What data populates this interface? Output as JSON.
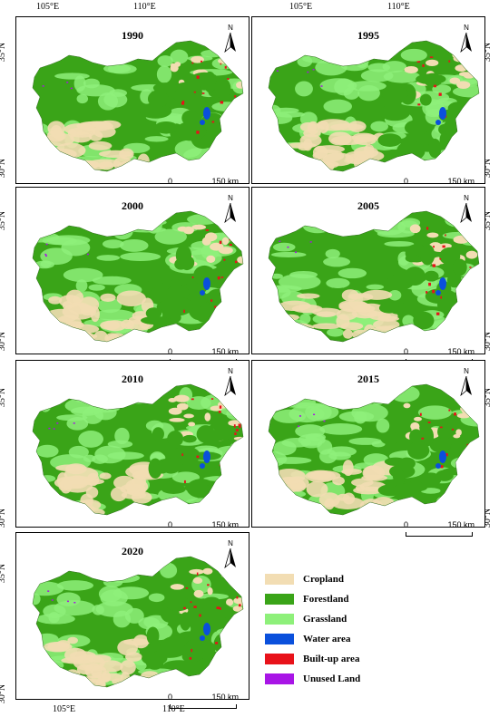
{
  "axes": {
    "lon_labels": [
      "105°E",
      "110°E"
    ],
    "lat_labels": [
      "35°N",
      "30°N"
    ]
  },
  "panels": [
    {
      "year": "1990"
    },
    {
      "year": "1995"
    },
    {
      "year": "2000"
    },
    {
      "year": "2005"
    },
    {
      "year": "2010"
    },
    {
      "year": "2015"
    },
    {
      "year": "2020"
    }
  ],
  "north_arrow": {
    "label": "N"
  },
  "scale_bar": {
    "start": "0",
    "end": "150 km"
  },
  "legend": {
    "items": [
      {
        "label": "Cropland",
        "color": "#f2ddb3"
      },
      {
        "label": "Forestland",
        "color": "#3aa418"
      },
      {
        "label": "Grassland",
        "color": "#8ef07a"
      },
      {
        "label": "Water area",
        "color": "#0a50dc"
      },
      {
        "label": "Built-up area",
        "color": "#e8121a"
      },
      {
        "label": "Unused Land",
        "color": "#a815e6"
      }
    ]
  }
}
